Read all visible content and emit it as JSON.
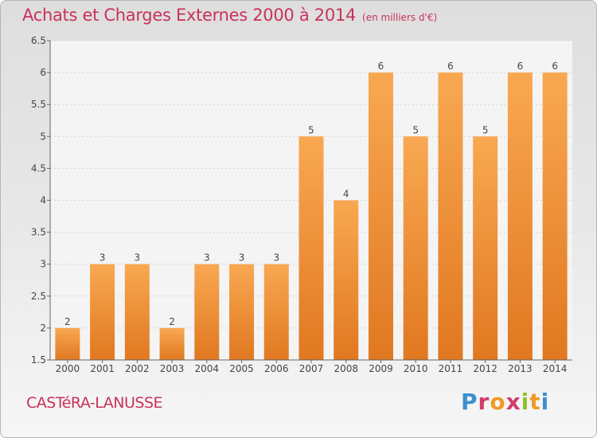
{
  "chart_data": {
    "type": "bar",
    "title": "Achats et Charges Externes 2000 à 2014",
    "unit_label": "(en milliers d'€)",
    "categories": [
      "2000",
      "2001",
      "2002",
      "2003",
      "2004",
      "2005",
      "2006",
      "2007",
      "2008",
      "2009",
      "2010",
      "2011",
      "2012",
      "2013",
      "2014"
    ],
    "values": [
      2,
      3,
      3,
      2,
      3,
      3,
      3,
      5,
      4,
      6,
      5,
      6,
      5,
      6,
      6
    ],
    "data_labels": [
      "2",
      "3",
      "3",
      "2",
      "3",
      "3",
      "3",
      "5",
      "4",
      "6",
      "5",
      "6",
      "5",
      "6",
      "6"
    ],
    "ylim": [
      1.5,
      6.5
    ],
    "yticks": [
      1.5,
      2,
      2.5,
      3,
      3.5,
      4,
      4.5,
      5,
      5.5,
      6,
      6.5
    ],
    "ytick_labels": [
      "1.5",
      "2",
      "2.5",
      "3",
      "3.5",
      "4",
      "4.5",
      "5",
      "5.5",
      "6",
      "6.5"
    ],
    "xlabel": "",
    "ylabel": "",
    "grid": true,
    "colors": {
      "bar_light": "#f9a852",
      "bar_dark": "#e07820",
      "text": "#444444",
      "title": "#c8325a"
    }
  },
  "commune": "CASTéRA-LANUSSE",
  "logo": {
    "letters": [
      "P",
      "r",
      "o",
      "x",
      "i",
      "t",
      "i"
    ]
  }
}
